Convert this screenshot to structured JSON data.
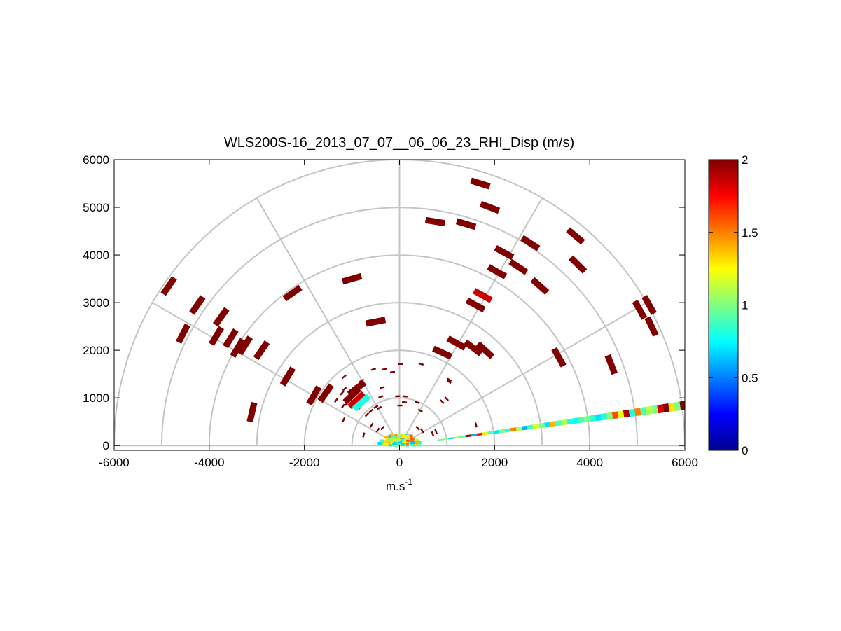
{
  "chart_data": {
    "type": "polar-rhi-heatmap",
    "title": "WLS200S-16_2013_07_07__06_06_23_RHI_Disp (m/s)",
    "xlabel_base": "m.s",
    "xlabel_sup": "-1",
    "xlim": [
      -6000,
      6000
    ],
    "ylim": [
      -100,
      6000
    ],
    "x_ticks": [
      -6000,
      -4000,
      -2000,
      0,
      2000,
      4000,
      6000
    ],
    "y_ticks": [
      0,
      1000,
      2000,
      3000,
      4000,
      5000,
      6000
    ],
    "range_rings": [
      1000,
      2000,
      3000,
      4000,
      5000,
      6000
    ],
    "spoke_angles_deg": [
      0,
      30,
      60,
      90,
      120,
      150,
      180
    ],
    "colorbar": {
      "min": 0,
      "max": 2,
      "ticks": [
        0,
        0.5,
        1,
        1.5,
        2
      ],
      "tick_labels": [
        "0",
        "0.5",
        "1",
        "1.5",
        "2"
      ],
      "colormap": "jet"
    },
    "main_beam": {
      "elevation_deg": 8,
      "range_start": 800,
      "range_end": 5700,
      "gate_length": 120,
      "values": [
        0.95,
        1.0,
        0.7,
        1.1,
        0.9,
        2.0,
        0.6,
        1.7,
        1.3,
        0.9,
        0.7,
        1.0,
        0.8,
        1.5,
        1.1,
        0.6,
        0.9,
        1.2,
        1.0,
        0.7,
        1.4,
        0.9,
        1.1,
        0.8,
        0.75,
        0.9,
        1.0,
        0.85,
        0.7,
        0.8,
        1.0,
        1.6,
        1.2,
        1.9,
        0.8,
        1.5,
        0.9,
        1.1,
        1.0,
        1.8,
        2.0,
        1.3,
        1.0,
        2.0,
        0.7
      ]
    },
    "scattered_gates": [
      {
        "x": -4850,
        "y": 3350,
        "v": 2.0
      },
      {
        "x": -4550,
        "y": 2350,
        "v": 2.0
      },
      {
        "x": -4250,
        "y": 2950,
        "v": 2.0
      },
      {
        "x": -3850,
        "y": 2300,
        "v": 2.0
      },
      {
        "x": -3750,
        "y": 2700,
        "v": 2.0
      },
      {
        "x": -3550,
        "y": 2250,
        "v": 2.0
      },
      {
        "x": -3400,
        "y": 2050,
        "v": 2.0
      },
      {
        "x": -3250,
        "y": 2100,
        "v": 2.0
      },
      {
        "x": -3100,
        "y": 700,
        "v": 2.0
      },
      {
        "x": -2900,
        "y": 2000,
        "v": 2.0
      },
      {
        "x": -2250,
        "y": 3200,
        "v": 2.0
      },
      {
        "x": -2350,
        "y": 1450,
        "v": 2.0
      },
      {
        "x": -1800,
        "y": 1050,
        "v": 2.0
      },
      {
        "x": -1550,
        "y": 1100,
        "v": 2.0
      },
      {
        "x": -1000,
        "y": 3500,
        "v": 2.0
      },
      {
        "x": -900,
        "y": 1200,
        "v": 2.0
      },
      {
        "x": -500,
        "y": 2600,
        "v": 2.0
      },
      {
        "x": -1000,
        "y": 1050,
        "v": 2.0
      },
      {
        "x": -900,
        "y": 950,
        "v": 1.85
      },
      {
        "x": -800,
        "y": 900,
        "v": 0.8
      },
      {
        "x": 750,
        "y": 4700,
        "v": 2.0
      },
      {
        "x": 1400,
        "y": 4650,
        "v": 2.0
      },
      {
        "x": 1700,
        "y": 5500,
        "v": 2.0
      },
      {
        "x": 1900,
        "y": 5000,
        "v": 2.0
      },
      {
        "x": 1750,
        "y": 3150,
        "v": 1.85
      },
      {
        "x": 1600,
        "y": 2950,
        "v": 2.0
      },
      {
        "x": 2200,
        "y": 4050,
        "v": 2.0
      },
      {
        "x": 2050,
        "y": 3650,
        "v": 2.0
      },
      {
        "x": 2500,
        "y": 3750,
        "v": 2.0
      },
      {
        "x": 2750,
        "y": 4250,
        "v": 2.0
      },
      {
        "x": 2950,
        "y": 3350,
        "v": 2.0
      },
      {
        "x": 3350,
        "y": 1850,
        "v": 2.0
      },
      {
        "x": 3700,
        "y": 4400,
        "v": 2.0
      },
      {
        "x": 3750,
        "y": 3800,
        "v": 2.0
      },
      {
        "x": 4450,
        "y": 1700,
        "v": 2.0
      },
      {
        "x": 5050,
        "y": 2850,
        "v": 2.0
      },
      {
        "x": 5250,
        "y": 2950,
        "v": 2.0
      },
      {
        "x": 5300,
        "y": 2500,
        "v": 2.0
      },
      {
        "x": 1550,
        "y": 2050,
        "v": 2.0
      },
      {
        "x": 1800,
        "y": 2000,
        "v": 2.0
      },
      {
        "x": 900,
        "y": 1950,
        "v": 2.0
      },
      {
        "x": 1200,
        "y": 2150,
        "v": 2.0
      }
    ]
  }
}
